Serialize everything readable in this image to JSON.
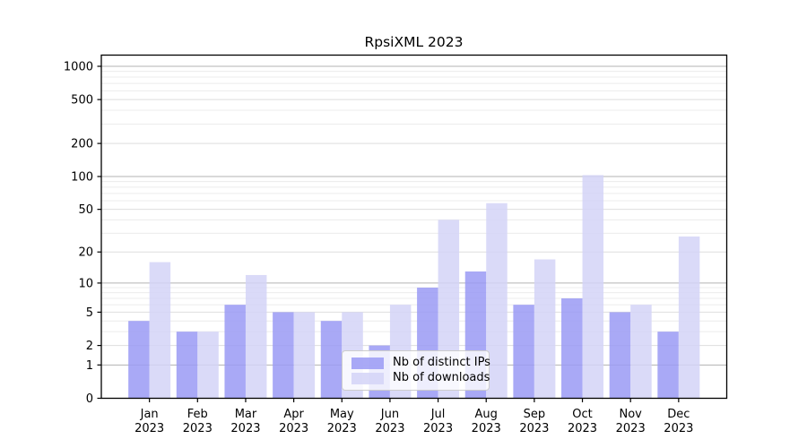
{
  "chart_data": {
    "type": "bar",
    "title": "RpsiXML 2023",
    "categories": [
      "Jan 2023",
      "Feb 2023",
      "Mar 2023",
      "Apr 2023",
      "May 2023",
      "Jun 2023",
      "Jul 2023",
      "Aug 2023",
      "Sep 2023",
      "Oct 2023",
      "Nov 2023",
      "Dec 2023"
    ],
    "series": [
      {
        "name": "Nb of distinct IPs",
        "color": "#9a9af5",
        "values": [
          4,
          3,
          6,
          5,
          4,
          2,
          9,
          13,
          6,
          7,
          5,
          3
        ]
      },
      {
        "name": "Nb of downloads",
        "color": "#d3d3f7",
        "values": [
          16,
          3,
          12,
          5,
          5,
          6,
          40,
          57,
          17,
          103,
          6,
          28
        ]
      }
    ],
    "xlabel": "",
    "ylabel": "",
    "y_ticks": [
      0,
      1,
      2,
      5,
      10,
      20,
      50,
      100,
      200,
      500,
      1000
    ],
    "y_minor_gridlines": [
      3,
      4,
      6,
      7,
      8,
      9,
      30,
      40,
      60,
      70,
      80,
      90,
      300,
      400,
      600,
      700,
      800,
      900
    ],
    "y_major_gridlines": [
      1,
      10,
      100,
      1000
    ],
    "y_scale": "log10(1+v)",
    "ylim": [
      0,
      1000
    ],
    "grid": true,
    "legend_position": "lower center",
    "colors": {
      "major_grid": "#b3b3b3",
      "labeled_minor_grid": "#dedede",
      "minor_grid": "#ececec",
      "axis": "#000000",
      "text": "#000000"
    }
  }
}
